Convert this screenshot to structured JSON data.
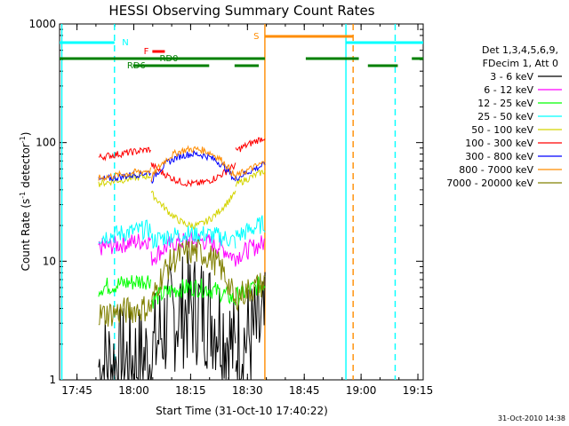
{
  "chart_data": {
    "type": "line",
    "title": "HESSI Observing Summary Count Rates",
    "xlabel": "Start Time (31-Oct-10 17:40:22)",
    "ylabel_main": "Count Rate (s",
    "ylabel_sup1": "-1",
    "ylabel_mid": " detector",
    "ylabel_sup2": "-1",
    "ylabel_end": ")",
    "y_scale": "log",
    "ylim": [
      1,
      1000
    ],
    "xlim_minutes": [
      0,
      96
    ],
    "x_ticks": [
      "17:45",
      "18:00",
      "18:15",
      "18:30",
      "18:45",
      "19:00",
      "19:15"
    ],
    "y_ticks": [
      "1",
      "10",
      "100",
      "1000"
    ],
    "legend_header": [
      "Det 1,3,4,5,6,9,",
      "FDecim 1, Att 0"
    ],
    "legend_position": "right",
    "timestamp": "31-Oct-2010 14:38",
    "series": [
      {
        "name": "3 - 6 keV",
        "color": "#000000",
        "level": [
          1.3,
          4,
          2.0
        ]
      },
      {
        "name": "6 - 12 keV",
        "color": "#ff00ff",
        "level": [
          13,
          15,
          11
        ]
      },
      {
        "name": "12 - 25 keV",
        "color": "#00ff00",
        "level": [
          6,
          6,
          5
        ]
      },
      {
        "name": "25 - 50 keV",
        "color": "#00ffff",
        "level": [
          16,
          17,
          16
        ]
      },
      {
        "name": "50 - 100 keV",
        "color": "#d4d400",
        "level": [
          45,
          20,
          44
        ]
      },
      {
        "name": "100 - 300 keV",
        "color": "#ff0000",
        "level": [
          75,
          45,
          85
        ]
      },
      {
        "name": "300 - 800 keV",
        "color": "#0000ff",
        "level": [
          48,
          80,
          50
        ]
      },
      {
        "name": "800 - 7000 keV",
        "color": "#ff8c00",
        "level": [
          50,
          88,
          52
        ]
      },
      {
        "name": "7000 - 20000 keV",
        "color": "#808000",
        "level": [
          3.5,
          12,
          5
        ]
      }
    ],
    "flags": [
      {
        "label": "N",
        "color": "#00ffff"
      },
      {
        "label": "F",
        "color": "#ff0000"
      },
      {
        "label": "RD0",
        "color": "#008000"
      },
      {
        "label": "RD6",
        "color": "#008000"
      },
      {
        "label": "S",
        "color": "#ff8c00"
      }
    ]
  }
}
